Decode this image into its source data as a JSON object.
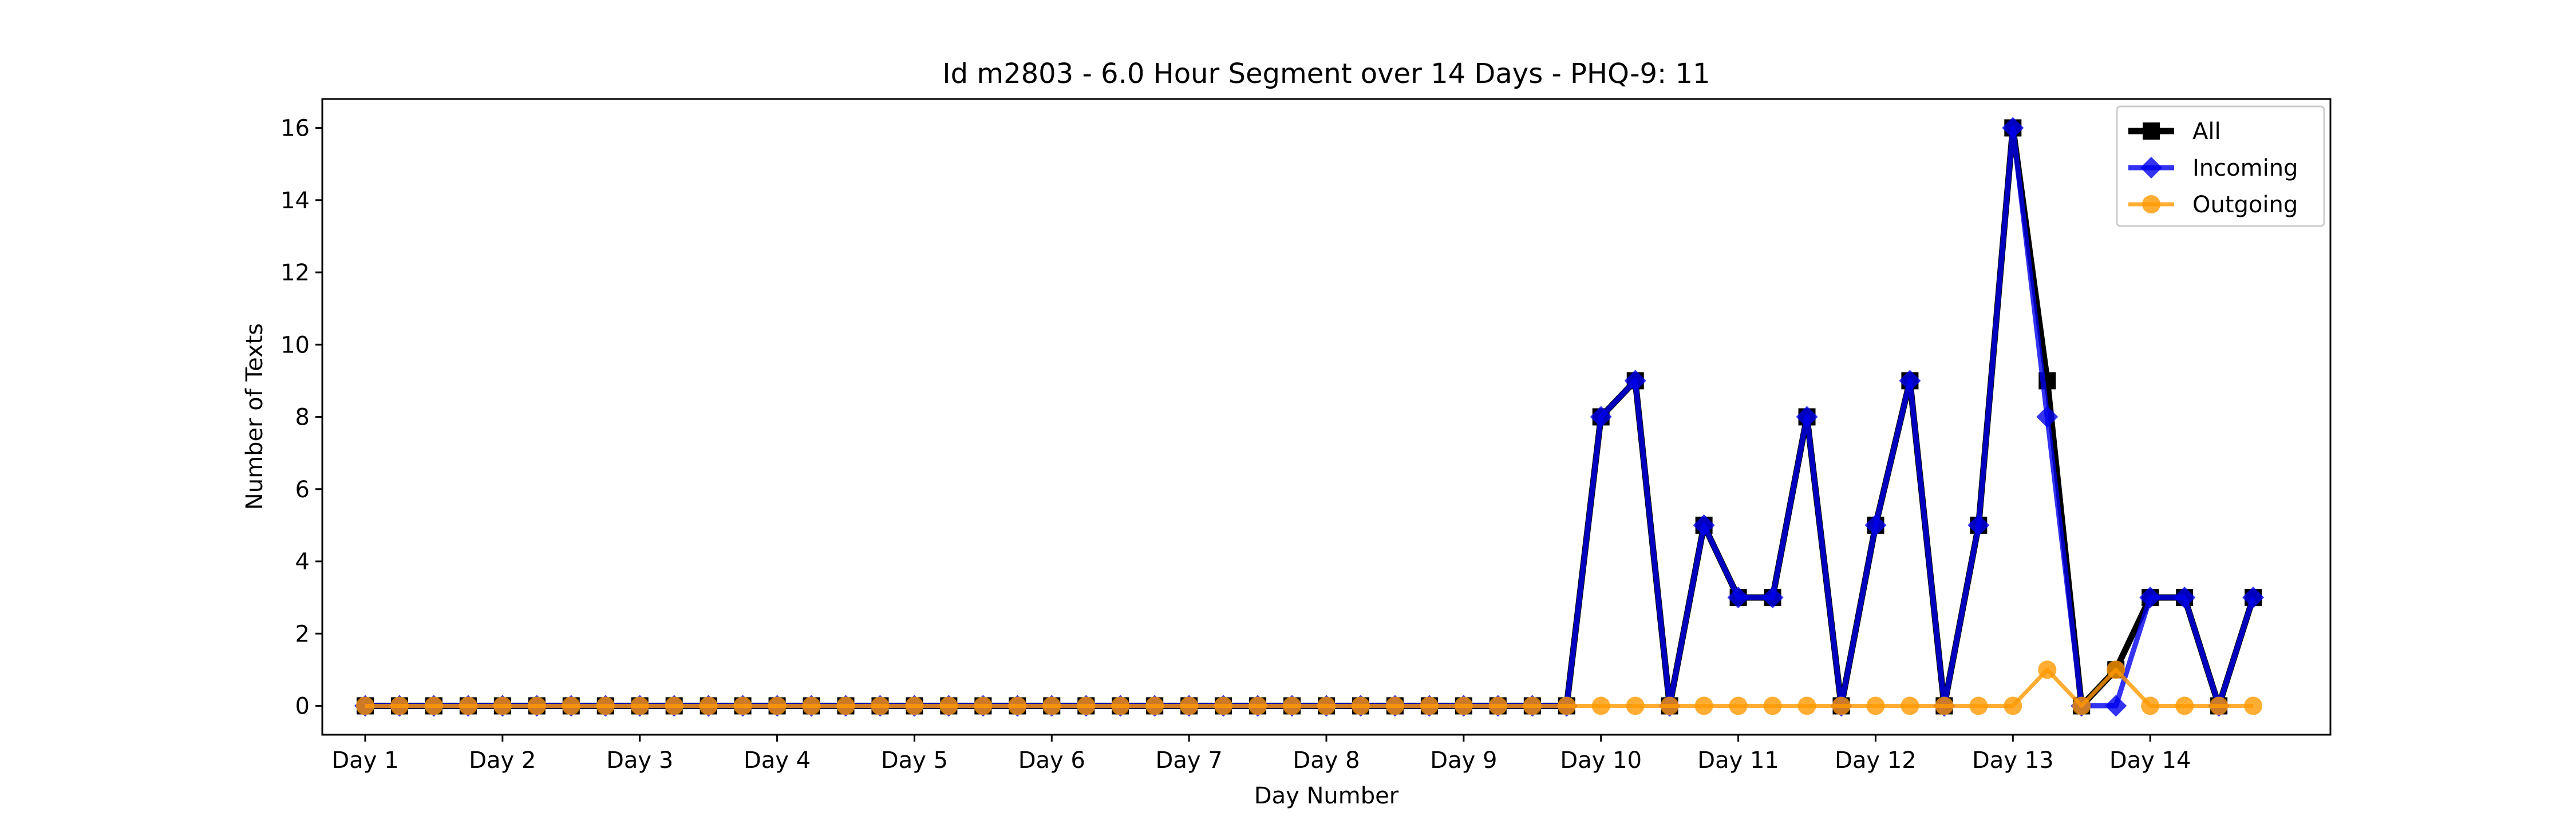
{
  "chart_data": {
    "type": "line",
    "title": "Id m2803 - 6.0 Hour Segment over 14 Days - PHQ-9: 11",
    "xlabel": "Day Number",
    "ylabel": "Number of Texts",
    "ylim": [
      -0.8,
      16.8
    ],
    "yticks": [
      0,
      2,
      4,
      6,
      8,
      10,
      12,
      14,
      16
    ],
    "xlim": [
      -1.25,
      57.25
    ],
    "xtick_positions": [
      0,
      4,
      8,
      12,
      16,
      20,
      24,
      28,
      32,
      36,
      40,
      44,
      48,
      52
    ],
    "xtick_labels": [
      "Day 1",
      "Day 2",
      "Day 3",
      "Day 4",
      "Day 5",
      "Day 6",
      "Day 7",
      "Day 8",
      "Day 9",
      "Day 10",
      "Day 11",
      "Day 12",
      "Day 13",
      "Day 14"
    ],
    "grid": false,
    "legend_position": "top-right",
    "series": [
      {
        "name": "All",
        "color": "#000000",
        "marker": "square",
        "values": [
          0,
          0,
          0,
          0,
          0,
          0,
          0,
          0,
          0,
          0,
          0,
          0,
          0,
          0,
          0,
          0,
          0,
          0,
          0,
          0,
          0,
          0,
          0,
          0,
          0,
          0,
          0,
          0,
          0,
          0,
          0,
          0,
          0,
          0,
          0,
          0,
          8,
          9,
          0,
          5,
          3,
          3,
          8,
          0,
          5,
          9,
          0,
          5,
          16,
          9,
          0,
          1,
          3,
          3,
          0,
          3
        ]
      },
      {
        "name": "Incoming",
        "color": "#0000ee",
        "marker": "diamond",
        "values": [
          0,
          0,
          0,
          0,
          0,
          0,
          0,
          0,
          0,
          0,
          0,
          0,
          0,
          0,
          0,
          0,
          0,
          0,
          0,
          0,
          0,
          0,
          0,
          0,
          0,
          0,
          0,
          0,
          0,
          0,
          0,
          0,
          0,
          0,
          0,
          0,
          8,
          9,
          0,
          5,
          3,
          3,
          8,
          0,
          5,
          9,
          0,
          5,
          16,
          8,
          0,
          0,
          3,
          3,
          0,
          3
        ]
      },
      {
        "name": "Outgoing",
        "color": "#ff9900",
        "marker": "circle",
        "values": [
          0,
          0,
          0,
          0,
          0,
          0,
          0,
          0,
          0,
          0,
          0,
          0,
          0,
          0,
          0,
          0,
          0,
          0,
          0,
          0,
          0,
          0,
          0,
          0,
          0,
          0,
          0,
          0,
          0,
          0,
          0,
          0,
          0,
          0,
          0,
          0,
          0,
          0,
          0,
          0,
          0,
          0,
          0,
          0,
          0,
          0,
          0,
          0,
          0,
          1,
          0,
          1,
          0,
          0,
          0,
          0
        ]
      }
    ]
  }
}
